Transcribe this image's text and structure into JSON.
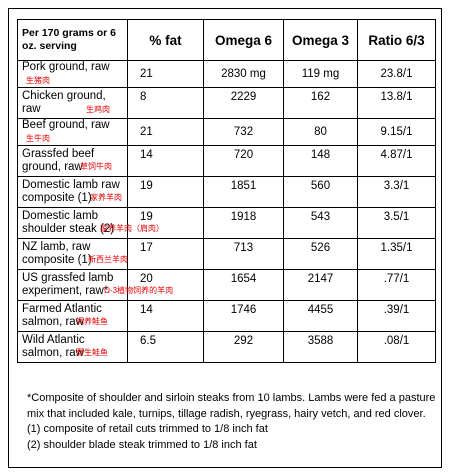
{
  "headers": [
    "Per 170 grams or 6 oz. serving",
    "% fat",
    "Omega 6",
    "Omega 3",
    "Ratio 6/3"
  ],
  "rows": [
    {
      "name": "Pork ground, raw",
      "anno": "生猪肉",
      "fat": "21",
      "omega6": "2830 mg",
      "omega3": "119 mg",
      "ratio": "23.8/1"
    },
    {
      "name": "Chicken ground, raw",
      "anno": "生鸡肉",
      "fat": "8",
      "omega6": "2229",
      "omega3": "162",
      "ratio": "13.8/1"
    },
    {
      "name": "Beef ground, raw",
      "anno": "生牛肉",
      "fat": "21",
      "omega6": "732",
      "omega3": "80",
      "ratio": "9.15/1"
    },
    {
      "name": "Grassfed beef ground, raw",
      "anno": "草饲牛肉",
      "fat": "14",
      "omega6": "720",
      "omega3": "148",
      "ratio": "4.87/1"
    },
    {
      "name": "Domestic lamb raw composite (1)",
      "anno": "家养羊肉",
      "fat": "19",
      "omega6": "1851",
      "omega3": "560",
      "ratio": "3.3/1"
    },
    {
      "name": "Domestic lamb shoulder steak (2)",
      "anno": "家养羊肉（肩肉）",
      "fat": "19",
      "omega6": "1918",
      "omega3": "543",
      "ratio": "3.5/1"
    },
    {
      "name": "NZ lamb, raw composite (1)",
      "anno": "新西兰羊肉",
      "fat": "17",
      "omega6": "713",
      "omega3": "526",
      "ratio": "1.35/1"
    },
    {
      "name": "US grassfed lamb experiment, raw*",
      "anno": "Ω-3植物饲养的羊肉",
      "fat": "20",
      "omega6": "1654",
      "omega3": "2147",
      "ratio": ".77/1"
    },
    {
      "name": "Farmed Atlantic salmon, raw",
      "anno": "饲养鲑鱼",
      "fat": "14",
      "omega6": "1746",
      "omega3": "4455",
      "ratio": ".39/1"
    },
    {
      "name": "Wild Atlantic salmon, raw",
      "anno": "野生鲑鱼",
      "fat": "6.5",
      "omega6": "292",
      "omega3": "3588",
      "ratio": ".08/1"
    }
  ],
  "notes": [
    "*Composite of shoulder and sirloin steaks from 10 lambs. Lambs were fed a pasture mix that included kale, turnips, tillage radish, ryegrass, hairy vetch, and red clover.",
    "(1) composite of retail cuts trimmed to 1/8 inch fat",
    "(2) shoulder blade steak trimmed to 1/8 inch fat"
  ]
}
